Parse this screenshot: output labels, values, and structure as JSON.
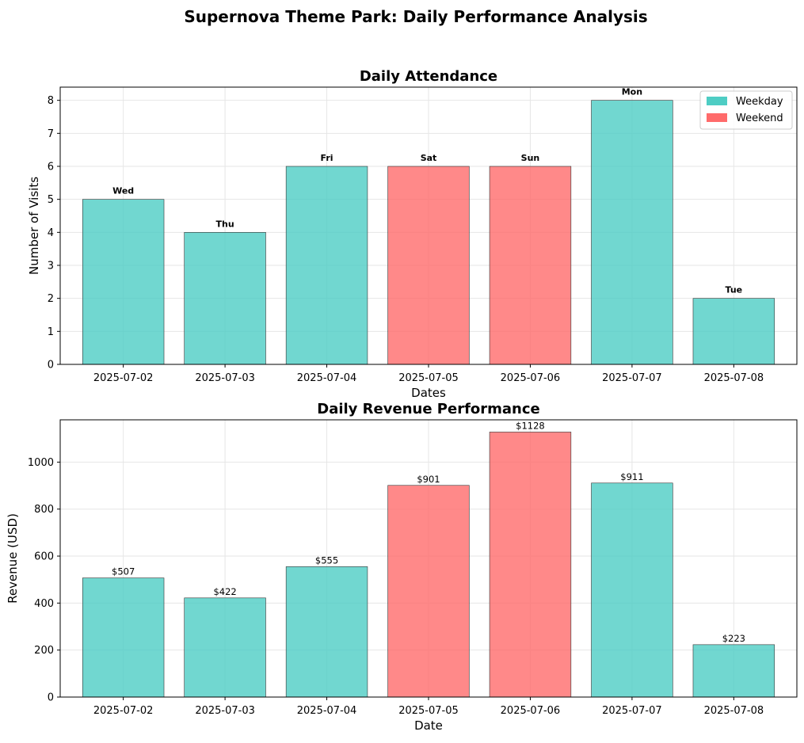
{
  "figure": {
    "suptitle": "Supernova Theme Park: Daily Performance Analysis"
  },
  "colors": {
    "weekday": "#4ECDC4",
    "weekend": "#FF6B6B",
    "edge": "#333333",
    "grid": "#e6e6e6"
  },
  "chart_data": [
    {
      "type": "bar",
      "title": "Daily Attendance",
      "xlabel": "Dates",
      "ylabel": "Number of Visits",
      "categories": [
        "2025-07-02",
        "2025-07-03",
        "2025-07-04",
        "2025-07-05",
        "2025-07-06",
        "2025-07-07",
        "2025-07-08"
      ],
      "values": [
        5,
        4,
        6,
        6,
        6,
        8,
        2
      ],
      "day_labels": [
        "Wed",
        "Thu",
        "Fri",
        "Sat",
        "Sun",
        "Mon",
        "Tue"
      ],
      "bar_groups": [
        "Weekday",
        "Weekday",
        "Weekday",
        "Weekend",
        "Weekend",
        "Weekday",
        "Weekday"
      ],
      "ylim": [
        0,
        8.4
      ],
      "yticks": [
        0,
        1,
        2,
        3,
        4,
        5,
        6,
        7,
        8
      ],
      "grid": true,
      "legend": {
        "placement": "top-right",
        "entries": [
          "Weekday",
          "Weekend"
        ]
      }
    },
    {
      "type": "bar",
      "title": "Daily Revenue Performance",
      "xlabel": "Date",
      "ylabel": "Revenue (USD)",
      "categories": [
        "2025-07-02",
        "2025-07-03",
        "2025-07-04",
        "2025-07-05",
        "2025-07-06",
        "2025-07-07",
        "2025-07-08"
      ],
      "values": [
        507,
        422,
        555,
        901,
        1128,
        911,
        223
      ],
      "value_labels": [
        "$507",
        "$422",
        "$555",
        "$901",
        "$1128",
        "$911",
        "$223"
      ],
      "bar_groups": [
        "Weekday",
        "Weekday",
        "Weekday",
        "Weekend",
        "Weekend",
        "Weekday",
        "Weekday"
      ],
      "ylim": [
        0,
        1180
      ],
      "yticks": [
        0,
        200,
        400,
        600,
        800,
        1000
      ],
      "grid": true
    }
  ]
}
